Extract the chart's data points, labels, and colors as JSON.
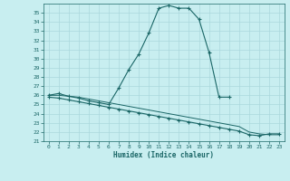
{
  "xlabel": "Humidex (Indice chaleur)",
  "background_color": "#c8eef0",
  "grid_color": "#aad8dc",
  "line_color": "#1a6666",
  "xlim": [
    -0.5,
    23.5
  ],
  "ylim": [
    21,
    36
  ],
  "xticks": [
    0,
    1,
    2,
    3,
    4,
    5,
    6,
    7,
    8,
    9,
    10,
    11,
    12,
    13,
    14,
    15,
    16,
    17,
    18,
    19,
    20,
    21,
    22,
    23
  ],
  "yticks": [
    21,
    22,
    23,
    24,
    25,
    26,
    27,
    28,
    29,
    30,
    31,
    32,
    33,
    34,
    35
  ],
  "curve1_x": [
    0,
    1,
    2,
    3,
    4,
    5,
    6,
    7,
    8,
    9,
    10,
    11,
    12,
    13,
    14,
    15,
    16,
    17,
    18
  ],
  "curve1_y": [
    26.0,
    26.2,
    25.9,
    25.7,
    25.4,
    25.2,
    25.0,
    26.8,
    28.8,
    30.5,
    32.8,
    35.5,
    35.8,
    35.5,
    35.5,
    34.3,
    30.7,
    25.8,
    25.8
  ],
  "curve2_x": [
    0,
    1,
    2,
    3,
    4,
    5,
    6,
    7,
    8,
    9,
    10,
    11,
    12,
    13,
    14,
    15,
    16,
    17,
    18,
    19,
    20,
    21,
    22,
    23
  ],
  "curve2_y": [
    25.8,
    25.7,
    25.5,
    25.3,
    25.1,
    24.9,
    24.7,
    24.5,
    24.3,
    24.1,
    23.9,
    23.7,
    23.5,
    23.3,
    23.1,
    22.9,
    22.7,
    22.5,
    22.3,
    22.1,
    21.7,
    21.6,
    21.8,
    21.8
  ],
  "curve3_x": [
    0,
    1,
    2,
    3,
    4,
    5,
    6,
    7,
    8,
    9,
    10,
    11,
    12,
    13,
    14,
    15,
    16,
    17,
    18,
    19,
    20,
    21,
    22,
    23
  ],
  "curve3_y": [
    26.0,
    26.0,
    25.9,
    25.8,
    25.6,
    25.4,
    25.2,
    25.0,
    24.8,
    24.6,
    24.4,
    24.2,
    24.0,
    23.8,
    23.6,
    23.4,
    23.2,
    23.0,
    22.8,
    22.6,
    22.0,
    21.8,
    21.7,
    21.7
  ]
}
